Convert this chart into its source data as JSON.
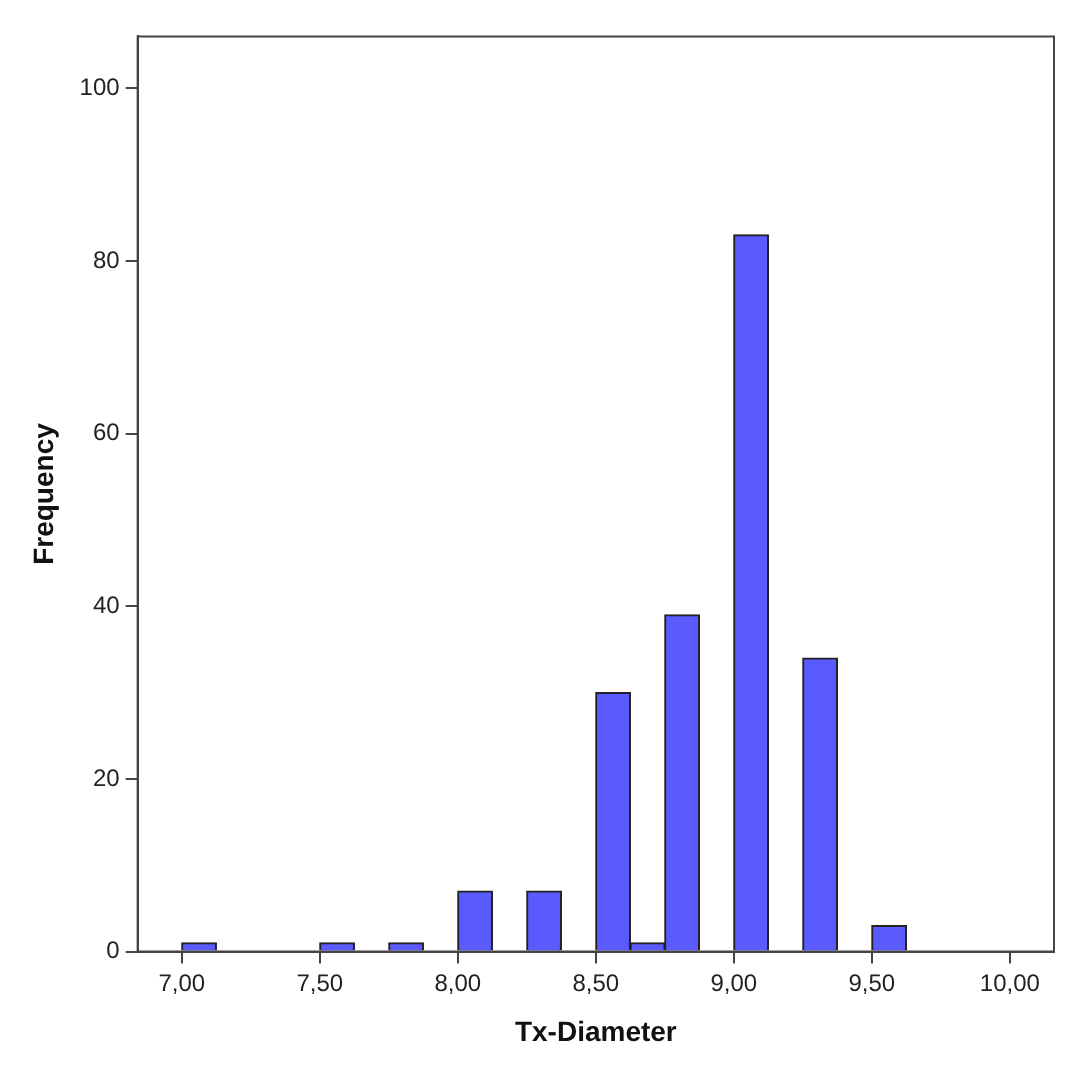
{
  "chart_data": {
    "type": "histogram",
    "xlabel": "Tx-Diameter",
    "ylabel": "Frequency",
    "bins": [
      7.0,
      7.125,
      7.25,
      7.375,
      7.5,
      7.625,
      7.75,
      7.875,
      8.0,
      8.125,
      8.25,
      8.375,
      8.5,
      8.625,
      8.75,
      8.875,
      9.0,
      9.125,
      9.25,
      9.375,
      9.5,
      9.625
    ],
    "values": [
      1,
      0,
      0,
      0,
      1,
      0,
      1,
      0,
      7,
      0,
      7,
      0,
      30,
      1,
      39,
      0,
      83,
      0,
      34,
      0,
      3
    ],
    "color": "#5a5aff",
    "xlim": [
      6.84,
      10.16
    ],
    "xticks": [
      {
        "value": 7,
        "label": "7,00"
      },
      {
        "value": 7.5,
        "label": "7,50"
      },
      {
        "value": 8,
        "label": "8,00"
      },
      {
        "value": 8.5,
        "label": "8,50"
      },
      {
        "value": 9,
        "label": "9,00"
      },
      {
        "value": 9.5,
        "label": "9,50"
      },
      {
        "value": 10,
        "label": "10,00"
      }
    ],
    "ylim": [
      0,
      106
    ],
    "yticks": [
      0,
      20,
      40,
      60,
      80,
      100
    ],
    "grid": false
  }
}
